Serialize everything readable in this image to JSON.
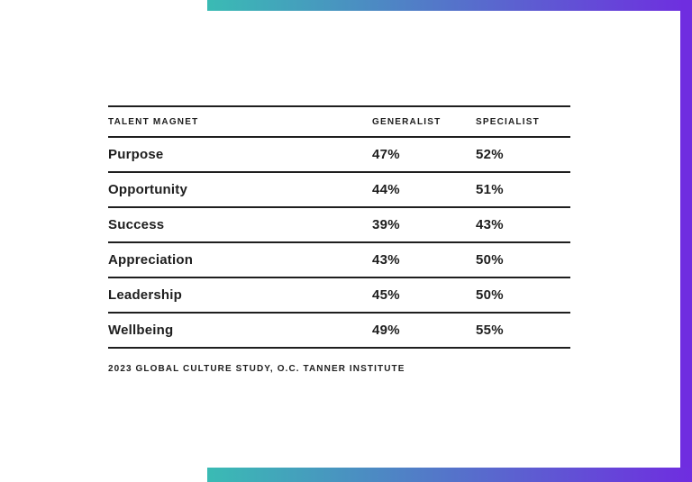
{
  "table": {
    "columns": [
      "TALENT MAGNET",
      "GENERALIST",
      "SPECIALIST"
    ],
    "rows": [
      {
        "label": "Purpose",
        "generalist": "47%",
        "specialist": "52%"
      },
      {
        "label": "Opportunity",
        "generalist": "44%",
        "specialist": "51%"
      },
      {
        "label": "Success",
        "generalist": "39%",
        "specialist": "43%"
      },
      {
        "label": "Appreciation",
        "generalist": "43%",
        "specialist": "50%"
      },
      {
        "label": "Leadership",
        "generalist": "45%",
        "specialist": "50%"
      },
      {
        "label": "Wellbeing",
        "generalist": "49%",
        "specialist": "55%"
      }
    ],
    "source": "2023 GLOBAL CULTURE STUDY, O.C. TANNER INSTITUTE"
  },
  "colors": {
    "accent_teal": "#3ABBB4",
    "accent_purple": "#6F2DE0",
    "text_color": "#1E1E1E",
    "rule_color": "#1E1E1E",
    "bg_color": "#FFFFFF"
  },
  "chart_data": {
    "type": "table",
    "title": "",
    "columns": [
      "TALENT MAGNET",
      "GENERALIST",
      "SPECIALIST"
    ],
    "rows": [
      [
        "Purpose",
        "47%",
        "52%"
      ],
      [
        "Opportunity",
        "44%",
        "51%"
      ],
      [
        "Success",
        "39%",
        "43%"
      ],
      [
        "Appreciation",
        "43%",
        "50%"
      ],
      [
        "Leadership",
        "45%",
        "50%"
      ],
      [
        "Wellbeing",
        "49%",
        "55%"
      ]
    ],
    "source": "2023 GLOBAL CULTURE STUDY, O.C. TANNER INSTITUTE"
  }
}
